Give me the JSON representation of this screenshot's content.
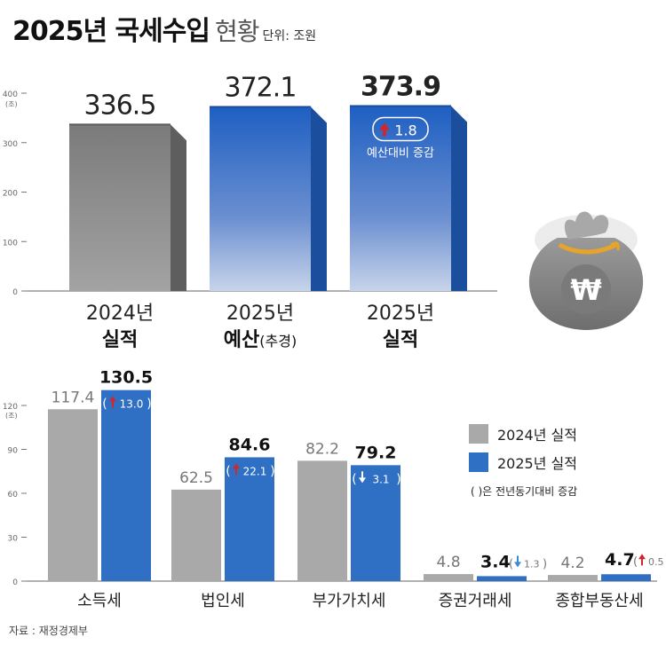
{
  "header": {
    "title": "2025년 국세수입",
    "subtitle": "현황",
    "unit": "단위: 조원"
  },
  "source": "자료 : 재정경제부",
  "colors": {
    "gray": "#8d8d8d",
    "blue": "#2f6fc4",
    "red_arrow": "#d0272f",
    "blue_arrow": "#3a8ad6"
  },
  "chart_data": [
    {
      "type": "bar",
      "y_unit_label": "(조)",
      "ylim": [
        0,
        400
      ],
      "yticks": [
        0,
        100,
        200,
        300,
        400
      ],
      "bars": [
        {
          "line1": "2024년",
          "line2": "실적",
          "line2_suffix": "",
          "value": 336.5,
          "value_label": "336.5",
          "color": "gray"
        },
        {
          "line1": "2025년",
          "line2": "예산",
          "line2_suffix": "(추경)",
          "value": 372.1,
          "value_label": "372.1",
          "color": "blue"
        },
        {
          "line1": "2025년",
          "line2": "실적",
          "line2_suffix": "",
          "value": 373.9,
          "value_label": "373.9",
          "color": "blue",
          "change": "1.8",
          "change_dir": "up",
          "change_note": "예산대비 증감"
        }
      ]
    },
    {
      "type": "bar",
      "y_unit_label": "(조)",
      "ylim": [
        0,
        120
      ],
      "yticks": [
        0,
        30,
        60,
        90,
        120
      ],
      "categories": [
        "소득세",
        "법인세",
        "부가가치세",
        "증권거래세",
        "종합부동산세"
      ],
      "series": [
        {
          "name": "2024년 실적",
          "color": "gray",
          "values": [
            117.4,
            62.5,
            82.2,
            4.8,
            4.2
          ],
          "labels": [
            "117.4",
            "62.5",
            "82.2",
            "4.8",
            "4.2"
          ]
        },
        {
          "name": "2025년 실적",
          "color": "blue",
          "values": [
            130.5,
            84.6,
            79.2,
            3.4,
            4.7
          ],
          "labels": [
            "130.5",
            "84.6",
            "79.2",
            "3.4",
            "4.7"
          ]
        }
      ],
      "changes": [
        {
          "value": "13.0",
          "dir": "up"
        },
        {
          "value": "22.1",
          "dir": "up"
        },
        {
          "value": "3.1",
          "dir": "down"
        },
        {
          "value": "1.3",
          "dir": "down"
        },
        {
          "value": "0.5",
          "dir": "up"
        }
      ],
      "legend_note": "( )은 전년동기대비 증감",
      "legend_position": "right"
    }
  ]
}
